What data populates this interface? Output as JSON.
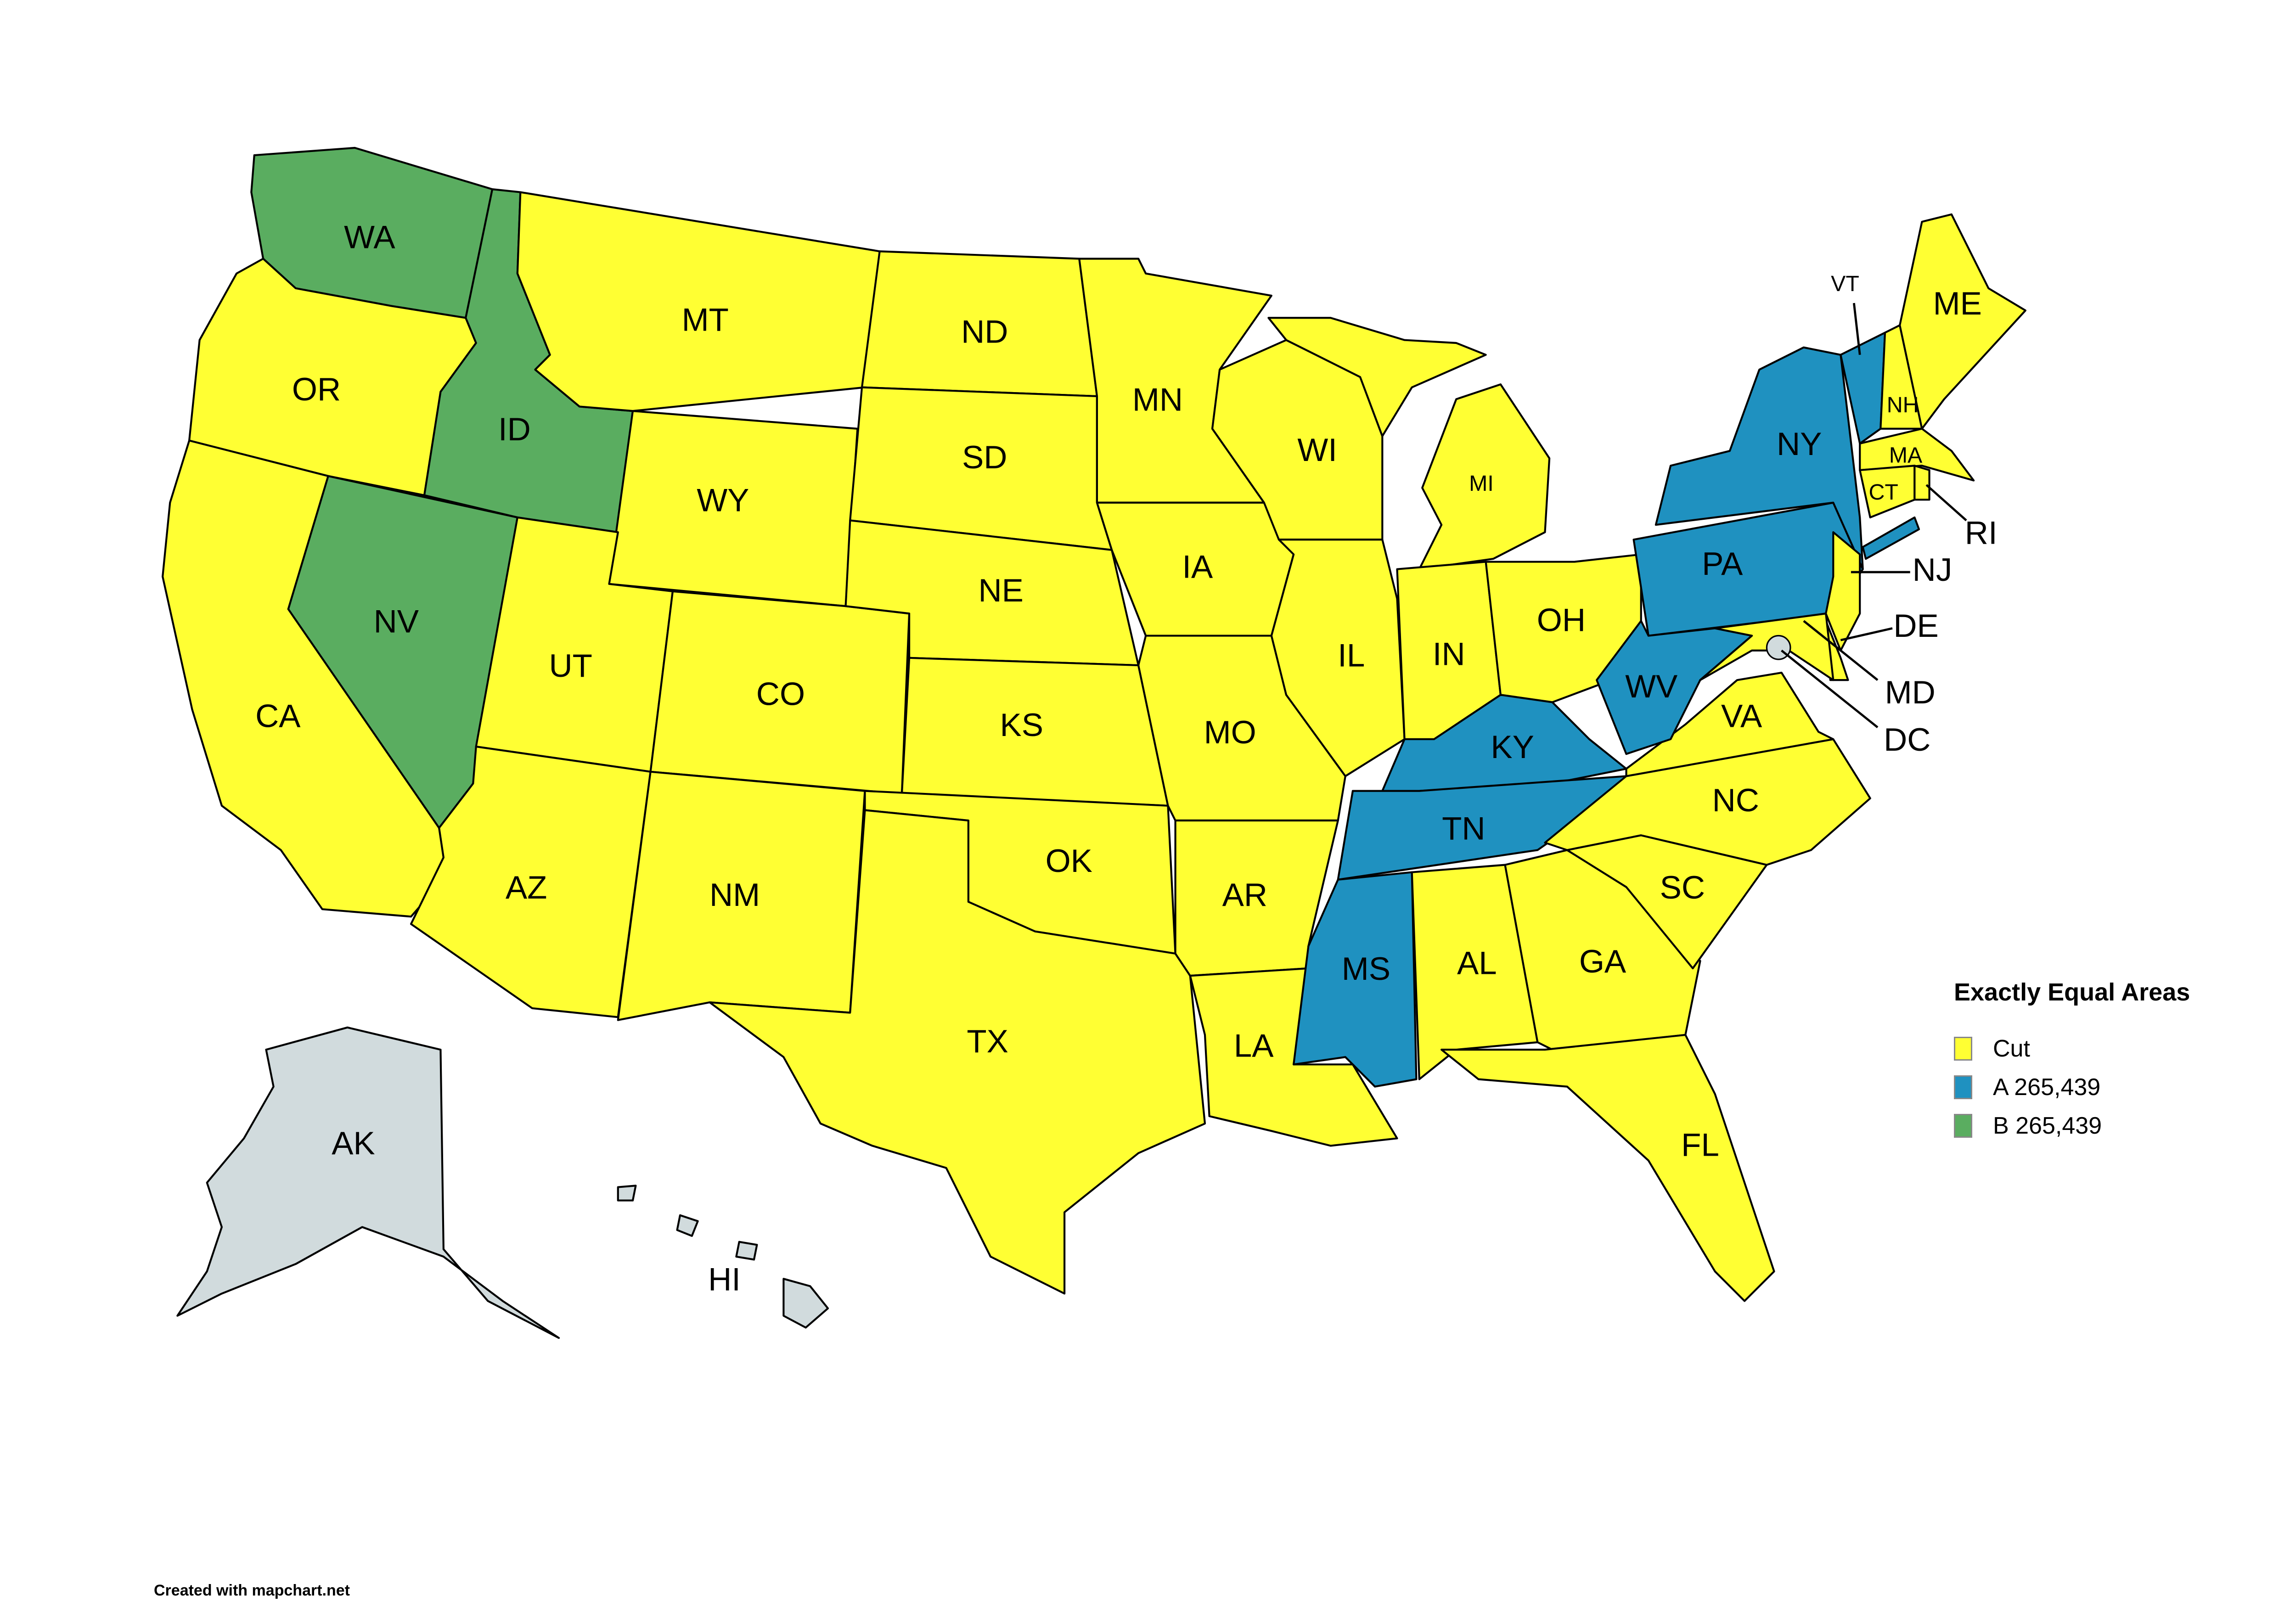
{
  "legend": {
    "title": "Exactly Equal Areas",
    "items": [
      {
        "label": "Cut",
        "color": "#ffff33"
      },
      {
        "label": "A 265,439",
        "color": "#1f91c0"
      },
      {
        "label": "B 265,439",
        "color": "#5aad60"
      }
    ]
  },
  "no_data_color": "#d1dbdd",
  "credit": "Created with mapchart.net",
  "states": {
    "WA": "B",
    "OR": "Cut",
    "CA": "Cut",
    "ID": "B",
    "NV": "B",
    "MT": "Cut",
    "WY": "Cut",
    "UT": "Cut",
    "CO": "Cut",
    "AZ": "Cut",
    "NM": "Cut",
    "ND": "Cut",
    "SD": "Cut",
    "NE": "Cut",
    "KS": "Cut",
    "OK": "Cut",
    "TX": "Cut",
    "MN": "Cut",
    "IA": "Cut",
    "MO": "Cut",
    "AR": "Cut",
    "LA": "Cut",
    "WI": "Cut",
    "IL": "Cut",
    "MI": "Cut",
    "IN": "Cut",
    "OH": "Cut",
    "KY": "A",
    "TN": "A",
    "MS": "A",
    "AL": "Cut",
    "GA": "Cut",
    "FL": "Cut",
    "SC": "Cut",
    "NC": "Cut",
    "VA": "Cut",
    "WV": "A",
    "PA": "A",
    "NY": "A",
    "VT": "A",
    "NH": "Cut",
    "ME": "Cut",
    "MA": "Cut",
    "CT": "Cut",
    "RI": "Cut",
    "NJ": "Cut",
    "DE": "Cut",
    "MD": "Cut",
    "DC": "none",
    "AK": "none",
    "HI": "none"
  },
  "labels": {
    "WA": "WA",
    "OR": "OR",
    "CA": "CA",
    "ID": "ID",
    "NV": "NV",
    "MT": "MT",
    "WY": "WY",
    "UT": "UT",
    "CO": "CO",
    "AZ": "AZ",
    "NM": "NM",
    "ND": "ND",
    "SD": "SD",
    "NE": "NE",
    "KS": "KS",
    "OK": "OK",
    "TX": "TX",
    "MN": "MN",
    "IA": "IA",
    "MO": "MO",
    "AR": "AR",
    "LA": "LA",
    "WI": "WI",
    "IL": "IL",
    "MI": "MI",
    "IN": "IN",
    "OH": "OH",
    "KY": "KY",
    "TN": "TN",
    "MS": "MS",
    "AL": "AL",
    "GA": "GA",
    "FL": "FL",
    "SC": "SC",
    "NC": "NC",
    "VA": "VA",
    "WV": "WV",
    "PA": "PA",
    "NY": "NY",
    "VT": "VT",
    "NH": "NH",
    "ME": "ME",
    "MA": "MA",
    "CT": "CT",
    "RI": "RI",
    "NJ": "NJ",
    "DE": "DE",
    "MD": "MD",
    "DC": "DC",
    "AK": "AK",
    "HI": "HI"
  }
}
